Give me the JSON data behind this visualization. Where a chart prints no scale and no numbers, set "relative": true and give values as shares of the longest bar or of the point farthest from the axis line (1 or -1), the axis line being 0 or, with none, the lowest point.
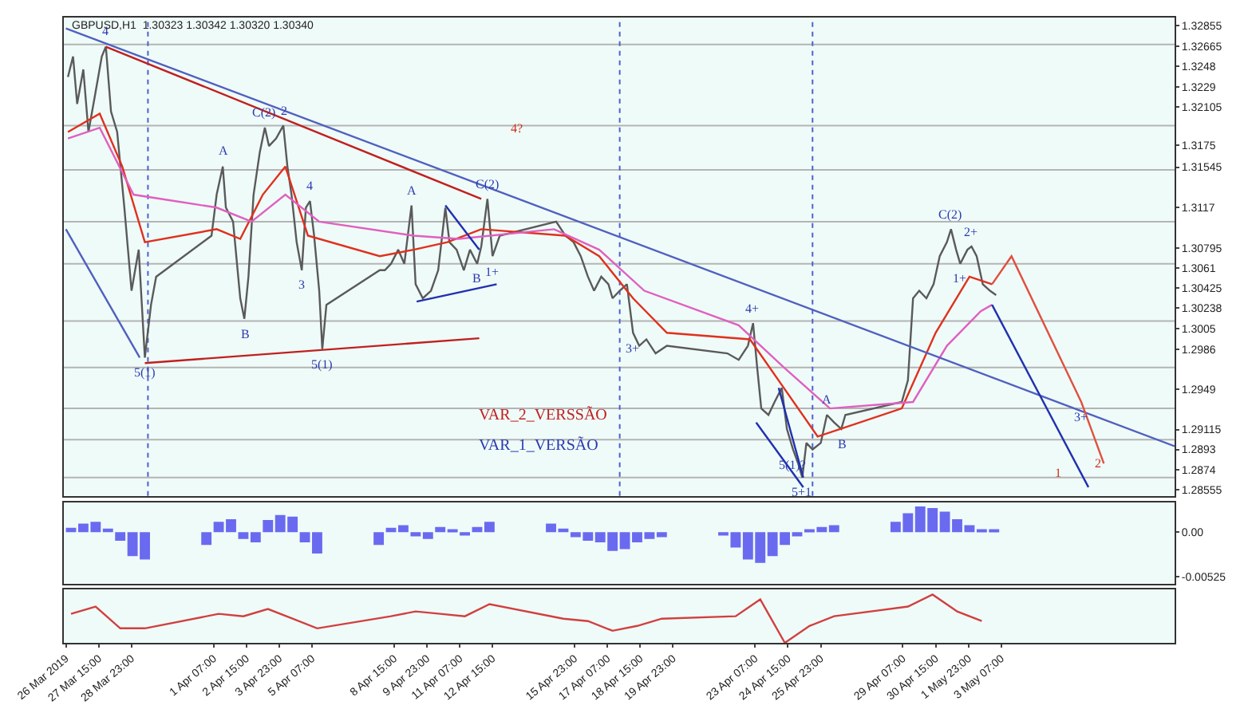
{
  "chart_data": [
    {
      "type": "line",
      "title": "GBPUSD,H1  1.30323 1.30342 1.30320 1.30340",
      "tick_labels": "y",
      "grid": false,
      "line_style": "solid",
      "marker": "none",
      "xlim": [
        "2019-03-26T05:00",
        "2019-05-10T08:00"
      ],
      "ylim": [
        1.285,
        1.3293
      ],
      "yticks": [
        1.32855,
        1.32665,
        1.3248,
        1.3229,
        1.32105,
        1.3175,
        1.31545,
        1.3117,
        1.30795,
        1.3061,
        1.30425,
        1.30238,
        1.3005,
        1.2986,
        1.2949,
        1.29115,
        1.2893,
        1.2874,
        1.28555
      ],
      "series": [
        {
          "color": "#5a5a5a",
          "x": [
            "2019-03-26T09:00",
            "2019-03-26T14:00",
            "2019-03-26T18:00",
            "2019-03-27T00:00",
            "2019-03-27T05:00",
            "2019-03-27T11:00",
            "2019-03-27T18:00",
            "2019-03-27T22:00",
            "2019-03-28T03:00",
            "2019-03-28T09:00",
            "2019-03-28T16:00",
            "2019-03-28T23:00",
            "2019-03-29T06:00",
            "2019-03-29T12:00",
            "2019-03-29T18:00",
            "2019-03-29T23:00",
            "2019-04-01T05:00",
            "2019-04-01T10:00",
            "2019-04-01T16:00",
            "2019-04-01T19:00",
            "2019-04-02T02:00",
            "2019-04-02T09:00",
            "2019-04-02T13:00",
            "2019-04-02T17:00",
            "2019-04-02T22:00",
            "2019-04-03T04:00",
            "2019-04-03T09:00",
            "2019-04-03T13:00",
            "2019-04-03T20:00",
            "2019-04-04T03:00",
            "2019-04-04T07:00",
            "2019-04-04T11:00",
            "2019-04-04T16:00",
            "2019-04-04T21:00",
            "2019-04-05T01:00",
            "2019-04-05T05:00",
            "2019-04-05T09:00",
            "2019-04-05T14:00",
            "2019-04-05T17:00",
            "2019-04-05T21:00",
            "2019-04-08T01:00",
            "2019-04-08T06:00",
            "2019-04-08T12:00",
            "2019-04-08T19:00",
            "2019-04-09T01:00",
            "2019-04-09T08:00",
            "2019-04-09T12:00",
            "2019-04-09T19:00",
            "2019-04-10T03:00",
            "2019-04-10T10:00",
            "2019-04-10T17:00",
            "2019-04-10T21:00",
            "2019-04-11T04:00",
            "2019-04-11T11:00",
            "2019-04-11T17:00",
            "2019-04-12T00:00",
            "2019-04-12T04:00",
            "2019-04-12T10:00",
            "2019-04-12T15:00",
            "2019-04-12T22:00",
            "2019-04-15T05:00",
            "2019-04-15T14:00",
            "2019-04-15T22:00",
            "2019-04-16T05:00",
            "2019-04-16T12:00",
            "2019-04-16T18:00",
            "2019-04-17T01:00",
            "2019-04-17T08:00",
            "2019-04-17T12:00",
            "2019-04-17T19:00",
            "2019-04-18T02:00",
            "2019-04-18T08:00",
            "2019-04-18T14:00",
            "2019-04-18T21:00",
            "2019-04-19T06:00",
            "2019-04-19T17:00",
            "2019-04-22T04:00",
            "2019-04-22T15:00",
            "2019-04-23T00:00",
            "2019-04-23T05:00",
            "2019-04-23T09:00",
            "2019-04-23T13:00",
            "2019-04-23T20:00",
            "2019-04-24T02:00",
            "2019-04-24T09:00",
            "2019-04-24T14:00",
            "2019-04-24T20:00",
            "2019-04-25T01:00",
            "2019-04-25T05:00",
            "2019-04-25T09:00",
            "2019-04-25T15:00",
            "2019-04-25T23:00",
            "2019-04-26T05:00",
            "2019-04-26T12:00",
            "2019-04-26T19:00",
            "2019-04-26T23:00",
            "2019-04-29T06:00",
            "2019-04-29T12:00",
            "2019-04-29T17:00",
            "2019-04-29T23:00",
            "2019-04-30T06:00",
            "2019-04-30T13:00",
            "2019-04-30T19:00",
            "2019-05-01T02:00",
            "2019-05-01T06:00",
            "2019-05-01T11:00",
            "2019-05-01T15:00",
            "2019-05-01T22:00",
            "2019-05-02T02:00",
            "2019-05-02T07:00",
            "2019-05-02T13:00",
            "2019-05-02T20:00",
            "2019-05-03T02:00"
          ],
          "values": [
            1.3238,
            1.3257,
            1.3213,
            1.3245,
            1.3187,
            1.3219,
            1.3257,
            1.3266,
            1.3206,
            1.3187,
            1.3117,
            1.304,
            1.3078,
            1.2978,
            1.3027,
            1.3053,
            1.3091,
            1.3129,
            1.3155,
            1.3117,
            1.3104,
            1.3033,
            1.3014,
            1.3053,
            1.3129,
            1.3168,
            1.3191,
            1.3174,
            1.3181,
            1.3193,
            1.3155,
            1.3129,
            1.3085,
            1.3059,
            1.3117,
            1.3123,
            1.3091,
            1.304,
            1.2986,
            1.3027,
            1.3059,
            1.3059,
            1.3065,
            1.3078,
            1.3065,
            1.3119,
            1.3046,
            1.3033,
            1.304,
            1.3059,
            1.3117,
            1.3085,
            1.3078,
            1.3059,
            1.3078,
            1.3065,
            1.3081,
            1.3125,
            1.3072,
            1.3091,
            1.3104,
            1.3091,
            1.3085,
            1.3072,
            1.3053,
            1.304,
            1.3053,
            1.3046,
            1.3033,
            1.304,
            1.3046,
            1.3001,
            1.2989,
            1.2995,
            1.2982,
            1.2989,
            1.2982,
            1.2976,
            1.2989,
            1.301,
            1.2969,
            1.2931,
            1.2925,
            1.2937,
            1.295,
            1.2912,
            1.2893,
            1.288,
            1.2867,
            1.2899,
            1.2893,
            1.2899,
            1.2925,
            1.2918,
            1.2912,
            1.2925,
            1.2937,
            1.2957,
            1.3033,
            1.304,
            1.3033,
            1.3046,
            1.3072,
            1.3085,
            1.3097,
            1.3078,
            1.3065,
            1.3078,
            1.3081,
            1.3072,
            1.3046,
            1.304,
            1.3036
          ]
        },
        {
          "color": "#e0301e",
          "x": [
            "2019-03-26T09:00",
            "2019-03-27T16:00",
            "2019-03-28T14:00",
            "2019-03-29T12:00",
            "2019-04-01T10:00",
            "2019-04-02T09:00",
            "2019-04-03T07:00",
            "2019-04-04T05:00",
            "2019-04-05T03:00",
            "2019-04-08T01:00",
            "2019-04-09T10:00",
            "2019-04-10T19:00",
            "2019-04-12T04:00",
            "2019-04-15T14:00",
            "2019-04-16T23:00",
            "2019-04-18T08:00",
            "2019-04-19T17:00",
            "2019-04-23T02:00",
            "2019-04-24T11:00",
            "2019-04-25T20:00",
            "2019-04-29T06:00",
            "2019-04-30T15:00",
            "2019-05-02T00:00",
            "2019-05-02T22:00"
          ],
          "values": [
            1.3187,
            1.3204,
            1.3155,
            1.3085,
            1.3097,
            1.3088,
            1.3129,
            1.3155,
            1.3091,
            1.3072,
            1.3078,
            1.3085,
            1.3097,
            1.3091,
            1.3072,
            1.3033,
            1.3001,
            1.2995,
            1.295,
            1.2905,
            1.2931,
            1.3001,
            1.3053,
            1.3046
          ]
        },
        {
          "color": "#e060c0",
          "x": [
            "2019-03-26T09:00",
            "2019-03-27T16:00",
            "2019-03-29T01:00",
            "2019-04-01T10:00",
            "2019-04-02T20:00",
            "2019-04-04T05:00",
            "2019-04-05T14:00",
            "2019-04-09T10:00",
            "2019-04-11T06:00",
            "2019-04-15T03:00",
            "2019-04-16T23:00",
            "2019-04-18T19:00",
            "2019-04-22T15:00",
            "2019-04-24T11:00",
            "2019-04-26T08:00",
            "2019-04-29T17:00",
            "2019-05-01T02:00",
            "2019-05-02T11:00",
            "2019-05-02T22:00"
          ],
          "values": [
            1.3181,
            1.3191,
            1.3129,
            1.3117,
            1.3104,
            1.3129,
            1.3104,
            1.3091,
            1.3088,
            1.3097,
            1.3078,
            1.304,
            1.3008,
            1.2969,
            1.2931,
            1.2937,
            1.2989,
            1.3021,
            1.3027
          ]
        },
        {
          "color": "#5060c0",
          "x": [
            "2019-03-26T07:00",
            "2019-05-10T08:00"
          ],
          "values": [
            1.3283,
            1.2896
          ]
        },
        {
          "color": "#c02020",
          "x": [
            "2019-03-27T22:00",
            "2019-04-12T04:00"
          ],
          "values": [
            1.3266,
            1.3125
          ]
        },
        {
          "color": "#c02020",
          "x": [
            "2019-03-29T12:00",
            "2019-04-12T02:00"
          ],
          "values": [
            1.2973,
            1.2996
          ]
        },
        {
          "color": "#5060c0",
          "x": [
            "2019-03-26T07:00",
            "2019-03-29T07:00"
          ],
          "values": [
            1.3097,
            1.2978
          ]
        },
        {
          "color": "#2030b0",
          "x": [
            "2019-04-09T13:00",
            "2019-04-12T19:00"
          ],
          "values": [
            1.303,
            1.3046
          ]
        },
        {
          "color": "#2030b0",
          "x": [
            "2019-04-10T17:00",
            "2019-04-12T02:00"
          ],
          "values": [
            1.3119,
            1.3078
          ]
        },
        {
          "color": "#2030b0",
          "x": [
            "2019-04-23T08:00",
            "2019-04-25T06:00"
          ],
          "values": [
            1.2918,
            1.2858
          ]
        },
        {
          "color": "#2030b0",
          "x": [
            "2019-04-24T06:00",
            "2019-04-25T06:00"
          ],
          "values": [
            1.295,
            1.2867
          ]
        },
        {
          "color": "#2030b0",
          "x": [
            "2019-05-02T22:00",
            "2019-05-06T20:00"
          ],
          "values": [
            1.3027,
            1.2858
          ]
        },
        {
          "color": "#e05040",
          "x": [
            "2019-05-02T22:00",
            "2019-05-03T17:00",
            "2019-05-06T13:00",
            "2019-05-07T11:00"
          ],
          "values": [
            1.3046,
            1.3072,
            1.2937,
            1.288
          ]
        }
      ],
      "ref_lines": [
        {
          "axis": "y",
          "value": 1.3268,
          "color": "#b4b4b4"
        },
        {
          "axis": "y",
          "value": 1.3193,
          "color": "#b4b4b4"
        },
        {
          "axis": "y",
          "value": 1.3152,
          "color": "#b4b4b4"
        },
        {
          "axis": "y",
          "value": 1.3104,
          "color": "#b4b4b4"
        },
        {
          "axis": "y",
          "value": 1.3065,
          "color": "#b4b4b4"
        },
        {
          "axis": "y",
          "value": 1.3012,
          "color": "#b4b4b4"
        },
        {
          "axis": "y",
          "value": 1.2969,
          "color": "#b4b4b4"
        },
        {
          "axis": "y",
          "value": 1.2931,
          "color": "#b4b4b4"
        },
        {
          "axis": "y",
          "value": 1.2902,
          "color": "#b4b4b4"
        },
        {
          "axis": "y",
          "value": 1.2867,
          "color": "#b4b4b4"
        },
        {
          "axis": "x",
          "value": "2019-03-29T15:00",
          "color": "#5060d0",
          "line_style": "dotted"
        },
        {
          "axis": "x",
          "value": "2019-04-17T19:00",
          "color": "#5060d0",
          "line_style": "dotted"
        },
        {
          "axis": "x",
          "value": "2019-04-25T15:00",
          "color": "#5060d0",
          "line_style": "dotted"
        }
      ],
      "annotations": [
        {
          "text": "4",
          "x": "2019-03-27T22:00",
          "y": 1.3266
        },
        {
          "text": "5(1)",
          "x": "2019-03-29T12:00",
          "y": 1.2978
        },
        {
          "text": "A",
          "x": "2019-04-01T16:00",
          "y": 1.3155
        },
        {
          "text": "B",
          "x": "2019-04-02T13:00",
          "y": 1.3014
        },
        {
          "text": "C(2)",
          "x": "2019-04-03T09:00",
          "y": 1.3191
        },
        {
          "text": "2",
          "x": "2019-04-04T03:00",
          "y": 1.3193
        },
        {
          "text": "3",
          "x": "2019-04-04T21:00",
          "y": 1.3059
        },
        {
          "text": "4",
          "x": "2019-04-05T05:00",
          "y": 1.3123
        },
        {
          "text": "5(1)",
          "x": "2019-04-05T17:00",
          "y": 1.2986
        },
        {
          "text": "A",
          "x": "2019-04-09T08:00",
          "y": 1.3119
        },
        {
          "text": "B",
          "x": "2019-04-12T00:00",
          "y": 1.3065
        },
        {
          "text": "C(2)",
          "x": "2019-04-12T10:00",
          "y": 1.3125
        },
        {
          "text": "1+",
          "x": "2019-04-12T15:00",
          "y": 1.3072
        },
        {
          "text": "3+",
          "x": "2019-04-18T08:00",
          "y": 1.3001
        },
        {
          "text": "4+",
          "x": "2019-04-23T05:00",
          "y": 1.301
        },
        {
          "text": "5(1)?",
          "x": "2019-04-24T20:00",
          "y": 1.2893
        },
        {
          "text": "5+1",
          "x": "2019-04-25T05:00",
          "y": 1.2867
        },
        {
          "text": "A",
          "x": "2019-04-26T05:00",
          "y": 1.2925
        },
        {
          "text": "B",
          "x": "2019-04-26T19:00",
          "y": 1.2912
        },
        {
          "text": "C(2)",
          "x": "2019-05-01T06:00",
          "y": 1.3097
        },
        {
          "text": "1+",
          "x": "2019-05-01T15:00",
          "y": 1.3065
        },
        {
          "text": "2+",
          "x": "2019-05-02T02:00",
          "y": 1.3081
        },
        {
          "text": "3+",
          "x": "2019-05-06T13:00",
          "y": 1.2937
        },
        "4?",
        "1",
        "2",
        "VAR_2_VERSSÃO",
        "VAR_1_VERSÃO"
      ]
    },
    {
      "type": "bar",
      "tick_labels": "y",
      "color": "#6a6af0",
      "xlim": [
        "2019-03-26T05:00",
        "2019-05-10T08:00"
      ],
      "ylim": [
        -0.006,
        0.0035
      ],
      "yticks": [
        {
          "value": 0,
          "label": "0.00"
        },
        -0.00525
      ],
      "x": [
        "2019-03-26T12:00",
        "2019-03-27T00:00",
        "2019-03-27T12:00",
        "2019-03-28T00:00",
        "2019-03-28T12:00",
        "2019-03-29T00:00",
        "2019-03-29T12:00",
        "2019-04-01T00:00",
        "2019-04-01T12:00",
        "2019-04-02T00:00",
        "2019-04-02T12:00",
        "2019-04-03T00:00",
        "2019-04-03T12:00",
        "2019-04-04T00:00",
        "2019-04-04T12:00",
        "2019-04-05T00:00",
        "2019-04-05T12:00",
        "2019-04-08T00:00",
        "2019-04-08T12:00",
        "2019-04-09T00:00",
        "2019-04-09T12:00",
        "2019-04-10T00:00",
        "2019-04-10T12:00",
        "2019-04-11T00:00",
        "2019-04-11T12:00",
        "2019-04-12T00:00",
        "2019-04-12T12:00",
        "2019-04-15T00:00",
        "2019-04-15T12:00",
        "2019-04-16T00:00",
        "2019-04-16T12:00",
        "2019-04-17T00:00",
        "2019-04-17T12:00",
        "2019-04-18T00:00",
        "2019-04-18T12:00",
        "2019-04-19T00:00",
        "2019-04-19T12:00",
        "2019-04-22T00:00",
        "2019-04-22T12:00",
        "2019-04-23T00:00",
        "2019-04-23T12:00",
        "2019-04-24T00:00",
        "2019-04-24T12:00",
        "2019-04-25T00:00",
        "2019-04-25T12:00",
        "2019-04-26T00:00",
        "2019-04-26T12:00",
        "2019-04-29T00:00",
        "2019-04-29T12:00",
        "2019-04-30T00:00",
        "2019-04-30T12:00",
        "2019-05-01T00:00",
        "2019-05-01T12:00",
        "2019-05-02T00:00",
        "2019-05-02T12:00",
        "2019-05-03T00:00"
      ],
      "values": [
        0.0005,
        0.001,
        0.0012,
        0.0004,
        -0.001,
        -0.0028,
        -0.0032,
        -0.0015,
        0.0012,
        0.0015,
        -0.0008,
        -0.0012,
        0.0014,
        0.002,
        0.0018,
        -0.0012,
        -0.0025,
        -0.0015,
        0.0005,
        0.0008,
        -0.0005,
        -0.0008,
        0.0006,
        0.0003,
        -0.0004,
        0.0006,
        0.0012,
        0.001,
        0.0004,
        -0.0006,
        -0.001,
        -0.0012,
        -0.0022,
        -0.002,
        -0.0012,
        -0.0008,
        -0.0006,
        -0.0004,
        -0.0018,
        -0.0032,
        -0.0036,
        -0.0028,
        -0.0015,
        -0.0005,
        0.0003,
        0.0006,
        0.0008,
        0.0012,
        0.0022,
        0.003,
        0.0028,
        0.0024,
        0.0015,
        0.0008,
        0.0002,
        0.0003
      ]
    },
    {
      "type": "line",
      "relative": true,
      "tick_labels": "x",
      "color": "#d04040",
      "xlim": [
        "2019-03-26T05:00",
        "2019-05-10T08:00"
      ],
      "xticks": [
        {
          "value": "2019-03-26T07:00",
          "label": "26 Mar 2019"
        },
        {
          "value": "2019-03-27T15:00",
          "label": "27 Mar 15:00"
        },
        {
          "value": "2019-03-28T23:00",
          "label": "28 Mar 23:00"
        },
        {
          "value": "2019-04-01T07:00",
          "label": "1 Apr 07:00"
        },
        {
          "value": "2019-04-02T15:00",
          "label": "2 Apr 15:00"
        },
        {
          "value": "2019-04-03T23:00",
          "label": "3 Apr 23:00"
        },
        {
          "value": "2019-04-05T07:00",
          "label": "5 Apr 07:00"
        },
        {
          "value": "2019-04-08T15:00",
          "label": "8 Apr 15:00"
        },
        {
          "value": "2019-04-09T23:00",
          "label": "9 Apr 23:00"
        },
        {
          "value": "2019-04-11T07:00",
          "label": "11 Apr 07:00"
        },
        {
          "value": "2019-04-12T15:00",
          "label": "12 Apr 15:00"
        },
        {
          "value": "2019-04-15T23:00",
          "label": "15 Apr 23:00"
        },
        {
          "value": "2019-04-17T07:00",
          "label": "17 Apr 07:00"
        },
        {
          "value": "2019-04-18T15:00",
          "label": "18 Apr 15:00"
        },
        {
          "value": "2019-04-19T23:00",
          "label": "19 Apr 23:00"
        },
        {
          "value": "2019-04-23T07:00",
          "label": "23 Apr 07:00"
        },
        {
          "value": "2019-04-24T15:00",
          "label": "24 Apr 15:00"
        },
        {
          "value": "2019-04-25T23:00",
          "label": "25 Apr 23:00"
        },
        {
          "value": "2019-04-29T07:00",
          "label": "29 Apr 07:00"
        },
        {
          "value": "2019-04-30T15:00",
          "label": "30 Apr 15:00"
        },
        {
          "value": "2019-05-01T23:00",
          "label": "1 May 23:00"
        },
        {
          "value": "2019-05-03T07:00",
          "label": "3 May 07:00"
        }
      ],
      "x": [
        "2019-03-26T12:00",
        "2019-03-27T12:00",
        "2019-03-28T12:00",
        "2019-03-29T12:00",
        "2019-04-01T12:00",
        "2019-04-02T12:00",
        "2019-04-03T12:00",
        "2019-04-04T12:00",
        "2019-04-05T12:00",
        "2019-04-08T12:00",
        "2019-04-09T12:00",
        "2019-04-10T12:00",
        "2019-04-11T12:00",
        "2019-04-12T12:00",
        "2019-04-15T12:00",
        "2019-04-16T12:00",
        "2019-04-17T12:00",
        "2019-04-18T12:00",
        "2019-04-19T12:00",
        "2019-04-22T12:00",
        "2019-04-23T12:00",
        "2019-04-24T12:00",
        "2019-04-25T12:00",
        "2019-04-26T12:00",
        "2019-04-29T12:00",
        "2019-04-30T12:00",
        "2019-05-01T12:00",
        "2019-05-02T12:00"
      ],
      "values": [
        0.6,
        0.75,
        0.3,
        0.3,
        0.6,
        0.55,
        0.7,
        0.5,
        0.3,
        0.55,
        0.65,
        0.6,
        0.55,
        0.8,
        0.5,
        0.45,
        0.25,
        0.35,
        0.5,
        0.55,
        0.9,
        0,
        0.35,
        0.55,
        0.75,
        1,
        0.65,
        0.45
      ]
    }
  ]
}
